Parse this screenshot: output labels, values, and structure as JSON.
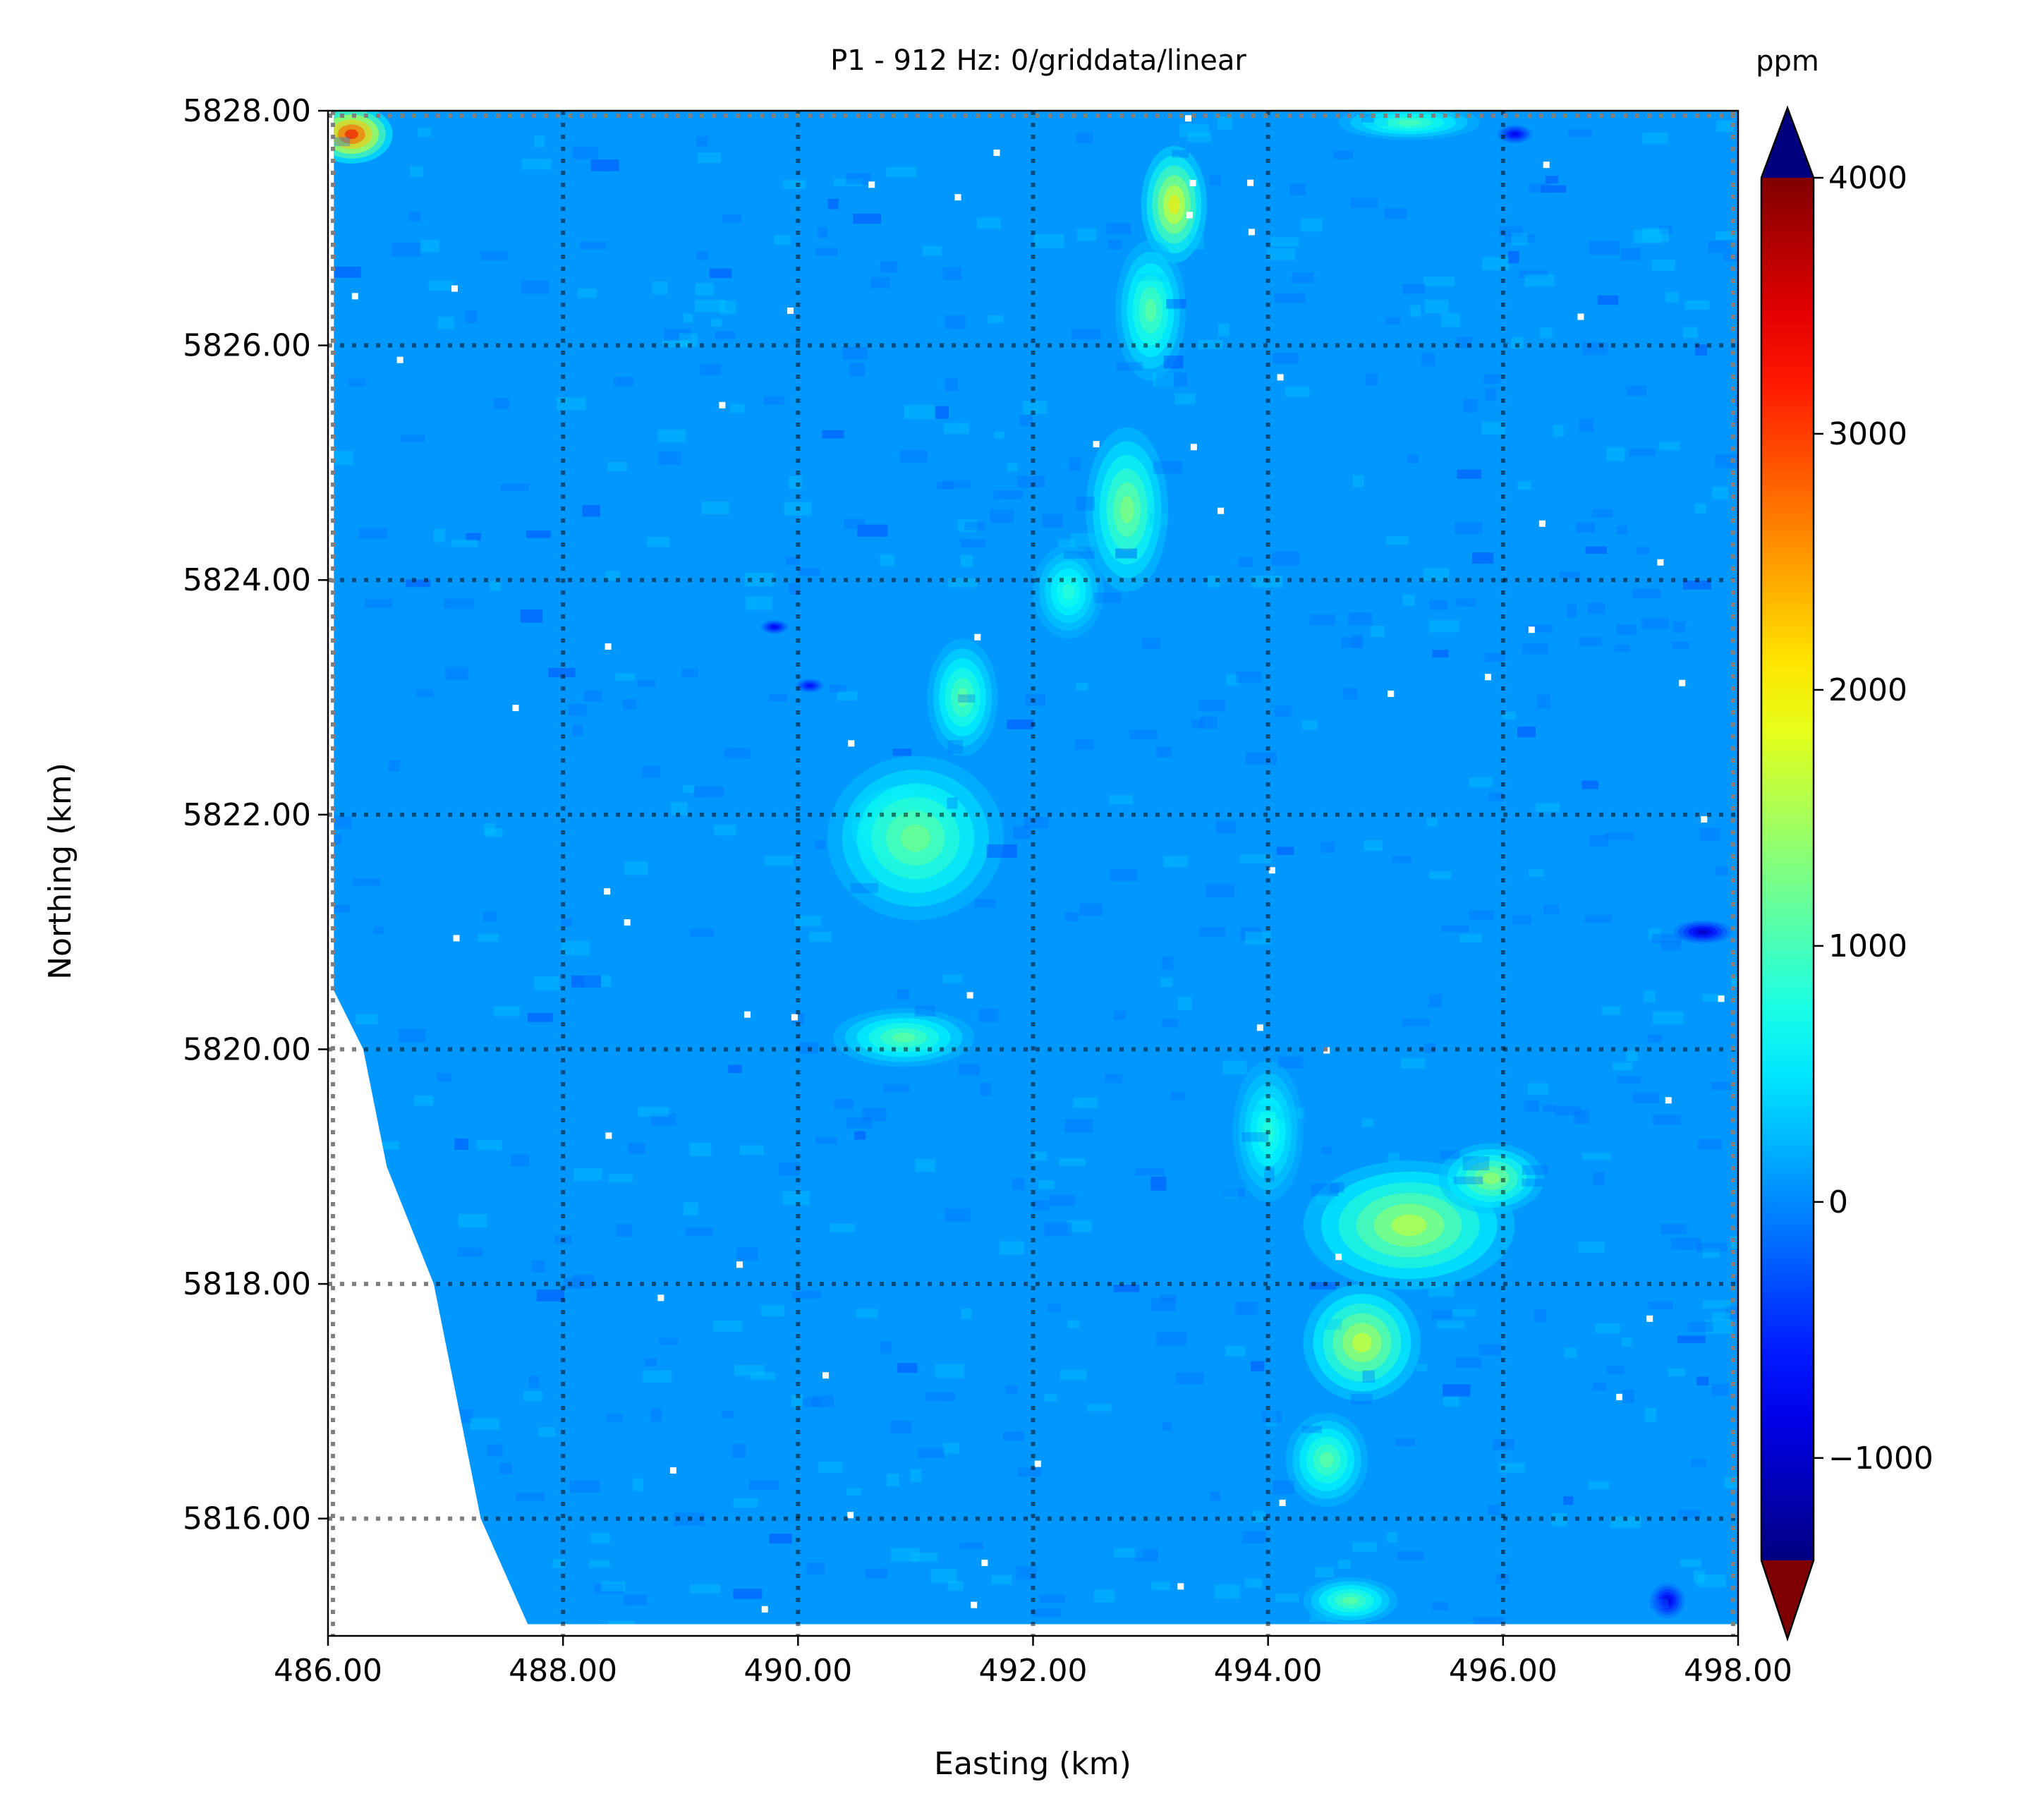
{
  "chart_data": {
    "type": "heatmap",
    "title": "P1 - 912 Hz: 0/griddata/linear",
    "xlabel": "Easting (km)",
    "ylabel": "Northing (km)",
    "xlim": [
      486.0,
      498.0
    ],
    "ylim": [
      5815.0,
      5828.0
    ],
    "x_ticks": [
      "486.00",
      "488.00",
      "490.00",
      "492.00",
      "494.00",
      "496.00",
      "498.00"
    ],
    "x_tick_values": [
      486,
      488,
      490,
      492,
      494,
      496,
      498
    ],
    "y_ticks": [
      "5828.00",
      "5826.00",
      "5824.00",
      "5822.00",
      "5820.00",
      "5818.00",
      "5816.00"
    ],
    "y_tick_values": [
      5828,
      5826,
      5824,
      5822,
      5820,
      5818,
      5816
    ],
    "grid": true,
    "grid_style": "dotted",
    "colorbar": {
      "label": "ppm",
      "colormap": "jet",
      "range": [
        -1400,
        4000
      ],
      "extend": "both",
      "ticks": [
        "4000",
        "3000",
        "2000",
        "1000",
        "0",
        "−1000"
      ],
      "tick_values": [
        4000,
        3000,
        2000,
        1000,
        0,
        -1000
      ]
    },
    "background_value_ppm": 80,
    "data_extent_polygon_km": [
      [
        486.05,
        5828.0
      ],
      [
        498.0,
        5828.0
      ],
      [
        498.0,
        5815.1
      ],
      [
        487.7,
        5815.1
      ],
      [
        487.3,
        5816.0
      ],
      [
        486.9,
        5818.0
      ],
      [
        486.5,
        5819.0
      ],
      [
        486.3,
        5820.0
      ],
      [
        486.05,
        5820.5
      ]
    ],
    "anomalies": [
      {
        "name": "northwest corner",
        "x": 486.2,
        "y": 5827.8,
        "ppm": 3400,
        "sx": 0.35,
        "sy": 0.25
      },
      {
        "name": "north central ridge top",
        "x": 493.2,
        "y": 5827.2,
        "ppm": 2100,
        "sx": 0.28,
        "sy": 0.5
      },
      {
        "name": "north central ridge upper",
        "x": 493.0,
        "y": 5826.3,
        "ppm": 1200,
        "sx": 0.3,
        "sy": 0.6
      },
      {
        "name": "north central ridge mid",
        "x": 492.8,
        "y": 5824.6,
        "ppm": 1400,
        "sx": 0.35,
        "sy": 0.7
      },
      {
        "name": "north central ridge lower",
        "x": 492.3,
        "y": 5823.9,
        "ppm": 900,
        "sx": 0.3,
        "sy": 0.4
      },
      {
        "name": "west central core",
        "x": 490.9,
        "y": 5821.9,
        "ppm": 2600,
        "sx": 0.45,
        "sy": 0.35
      },
      {
        "name": "west central body",
        "x": 491.0,
        "y": 5821.8,
        "ppm": 1300,
        "sx": 0.75,
        "sy": 0.7
      },
      {
        "name": "west central upper lobe",
        "x": 491.4,
        "y": 5823.0,
        "ppm": 1200,
        "sx": 0.3,
        "sy": 0.5
      },
      {
        "name": "west central southern lobe",
        "x": 490.9,
        "y": 5820.1,
        "ppm": 1200,
        "sx": 0.6,
        "sy": 0.25
      },
      {
        "name": "south east body",
        "x": 495.2,
        "y": 5818.5,
        "ppm": 1700,
        "sx": 0.9,
        "sy": 0.55
      },
      {
        "name": "south east upper",
        "x": 495.9,
        "y": 5818.9,
        "ppm": 1500,
        "sx": 0.45,
        "sy": 0.3
      },
      {
        "name": "south east lower",
        "x": 494.8,
        "y": 5817.5,
        "ppm": 1800,
        "sx": 0.5,
        "sy": 0.5
      },
      {
        "name": "south east tail",
        "x": 494.5,
        "y": 5816.5,
        "ppm": 1200,
        "sx": 0.35,
        "sy": 0.4
      },
      {
        "name": "south linear feature",
        "x": 494.0,
        "y": 5819.3,
        "ppm": 900,
        "sx": 0.3,
        "sy": 0.6
      },
      {
        "name": "northeast strip",
        "x": 495.2,
        "y": 5827.9,
        "ppm": 1100,
        "sx": 0.6,
        "sy": 0.15
      },
      {
        "name": "south bottom",
        "x": 494.7,
        "y": 5815.3,
        "ppm": 1200,
        "sx": 0.4,
        "sy": 0.2
      },
      {
        "name": "red spot center",
        "x": 489.8,
        "y": 5823.6,
        "ppm": -900,
        "sx": 0.12,
        "sy": 0.06
      },
      {
        "name": "red spot west",
        "x": 490.1,
        "y": 5823.1,
        "ppm": -800,
        "sx": 0.12,
        "sy": 0.06
      },
      {
        "name": "red spot east",
        "x": 497.7,
        "y": 5821.0,
        "ppm": -1100,
        "sx": 0.25,
        "sy": 0.1
      },
      {
        "name": "red spot south",
        "x": 497.4,
        "y": 5815.3,
        "ppm": -1000,
        "sx": 0.15,
        "sy": 0.15
      },
      {
        "name": "red spot north",
        "x": 496.1,
        "y": 5827.8,
        "ppm": -900,
        "sx": 0.15,
        "sy": 0.08
      }
    ]
  }
}
